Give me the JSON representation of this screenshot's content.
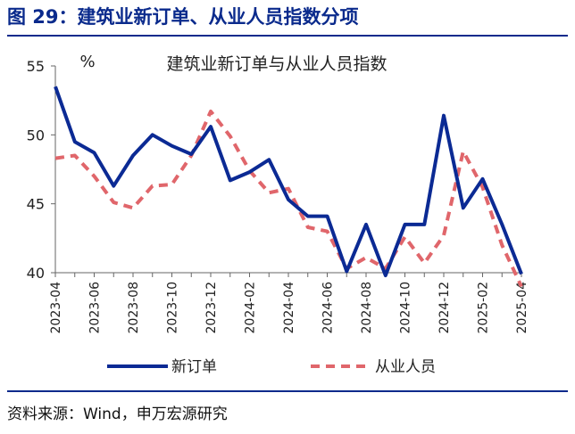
{
  "figure_title": "图 29：建筑业新订单、从业人员指数分项",
  "source": "资料来源：Wind，申万宏源研究",
  "colors": {
    "accent": "#0a2a8c",
    "series_new_orders": "#0b2a94",
    "series_employment": "#e0666b"
  },
  "chart_data": {
    "type": "line",
    "title": "建筑业新订单与从业人员指数",
    "ylabel": "%",
    "xlabel": "",
    "ylim": [
      40,
      55
    ],
    "yticks": [
      40,
      45,
      50,
      55
    ],
    "x": [
      "2023-04",
      "2023-05",
      "2023-06",
      "2023-07",
      "2023-08",
      "2023-09",
      "2023-10",
      "2023-11",
      "2023-12",
      "2024-01",
      "2024-02",
      "2024-03",
      "2024-04",
      "2024-05",
      "2024-06",
      "2024-07",
      "2024-08",
      "2024-09",
      "2024-10",
      "2024-11",
      "2024-12",
      "2025-01",
      "2025-02",
      "2025-03",
      "2025-04"
    ],
    "xtick_labels": [
      "2023-04",
      "2023-06",
      "2023-08",
      "2023-10",
      "2023-12",
      "2024-02",
      "2024-04",
      "2024-06",
      "2024-08",
      "2024-10",
      "2024-12",
      "2025-02",
      "2025-04"
    ],
    "legend_position": "bottom",
    "grid": false,
    "series": [
      {
        "name": "新订单",
        "style": "solid",
        "values": [
          53.5,
          49.5,
          48.7,
          46.3,
          48.5,
          50.0,
          49.2,
          48.6,
          50.6,
          46.7,
          47.3,
          48.2,
          45.3,
          44.1,
          44.1,
          40.1,
          43.5,
          39.8,
          43.5,
          43.5,
          51.4,
          44.7,
          46.8,
          43.5,
          39.9
        ]
      },
      {
        "name": "从业人员",
        "style": "dashed",
        "values": [
          48.3,
          48.5,
          47.0,
          45.1,
          44.7,
          46.3,
          46.4,
          48.5,
          51.7,
          49.9,
          47.4,
          45.8,
          46.1,
          43.3,
          43.0,
          40.3,
          41.1,
          40.3,
          42.6,
          40.7,
          42.7,
          48.8,
          46.2,
          42.0,
          39.0
        ]
      }
    ]
  }
}
